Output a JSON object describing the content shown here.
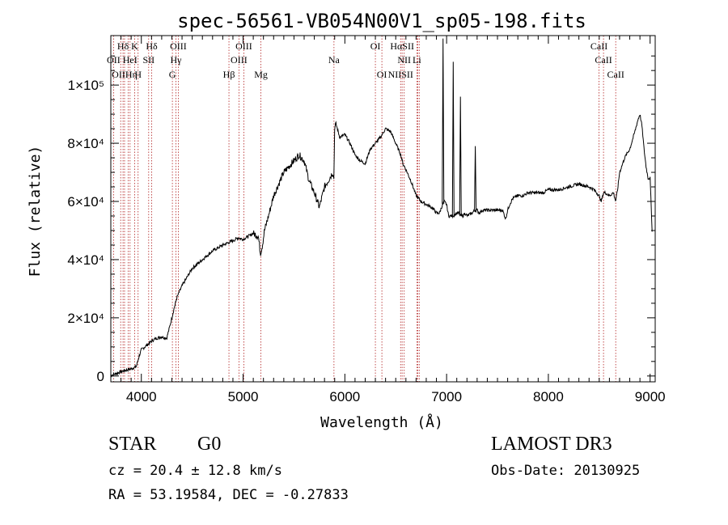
{
  "chart_data": {
    "type": "line",
    "title": "spec-56561-VB054N00V1_sp05-198.fits",
    "xlabel": "Wavelength (Å)",
    "ylabel": "Flux (relative)",
    "xlim": [
      3700,
      9050
    ],
    "ylim": [
      -2000,
      117000
    ],
    "x_ticks": [
      4000,
      5000,
      6000,
      7000,
      8000,
      9000
    ],
    "y_ticks": [
      {
        "value": 0,
        "label": "0"
      },
      {
        "value": 20000,
        "label": "2×10⁴"
      },
      {
        "value": 40000,
        "label": "4×10⁴"
      },
      {
        "value": 60000,
        "label": "6×10⁴"
      },
      {
        "value": 80000,
        "label": "8×10⁴"
      },
      {
        "value": 100000,
        "label": "1×10⁵"
      }
    ],
    "line_color": "#000000",
    "marker_color": "#b22222",
    "line_markers": [
      {
        "label": "Hδ",
        "x": 3820,
        "row": 0
      },
      {
        "label": "K",
        "x": 3934,
        "row": 0
      },
      {
        "label": "Hδ",
        "x": 4102,
        "row": 0
      },
      {
        "label": "OIII",
        "x": 4363,
        "row": 0
      },
      {
        "label": "OIII",
        "x": 5007,
        "row": 0
      },
      {
        "label": "OI",
        "x": 6300,
        "row": 0
      },
      {
        "label": "HαSII",
        "x": 6563,
        "row": 0
      },
      {
        "label": "CaII",
        "x": 8498,
        "row": 0
      },
      {
        "label": "OII",
        "x": 3727,
        "row": 1
      },
      {
        "label": "HeI",
        "x": 3889,
        "row": 1
      },
      {
        "label": "SII",
        "x": 4072,
        "row": 1
      },
      {
        "label": "Hγ",
        "x": 4340,
        "row": 1
      },
      {
        "label": "OIII",
        "x": 4959,
        "row": 1
      },
      {
        "label": "Na",
        "x": 5893,
        "row": 1
      },
      {
        "label": "NII",
        "x": 6583,
        "row": 1
      },
      {
        "label": "Li",
        "x": 6708,
        "row": 1
      },
      {
        "label": "CaII",
        "x": 8542,
        "row": 1
      },
      {
        "label": "OIIHη",
        "x": 3835,
        "row": 2
      },
      {
        "label": "H",
        "x": 3968,
        "row": 2
      },
      {
        "label": "G",
        "x": 4305,
        "row": 2
      },
      {
        "label": "Hβ",
        "x": 4861,
        "row": 2
      },
      {
        "label": "Mg",
        "x": 5175,
        "row": 2
      },
      {
        "label": "OI",
        "x": 6364,
        "row": 2
      },
      {
        "label": "NIISII",
        "x": 6548,
        "row": 2
      },
      {
        "label": "CaII",
        "x": 8662,
        "row": 2
      }
    ],
    "extra_marker_lines": [
      3797,
      3870,
      6717,
      6731
    ],
    "spectrum": {
      "x": [
        3700,
        3750,
        3800,
        3850,
        3900,
        3950,
        3960,
        3980,
        4000,
        4050,
        4100,
        4150,
        4200,
        4250,
        4300,
        4320,
        4350,
        4400,
        4450,
        4500,
        4600,
        4700,
        4800,
        4900,
        4950,
        5000,
        5050,
        5100,
        5150,
        5170,
        5190,
        5210,
        5250,
        5300,
        5350,
        5400,
        5450,
        5500,
        5550,
        5600,
        5650,
        5700,
        5750,
        5800,
        5850,
        5880,
        5893,
        5900,
        5910,
        5950,
        6000,
        6050,
        6100,
        6150,
        6200,
        6250,
        6300,
        6350,
        6400,
        6450,
        6500,
        6550,
        6570,
        6600,
        6650,
        6700,
        6750,
        6800,
        6850,
        6880,
        6900,
        6930,
        6950,
        6975,
        7000,
        7010,
        7020,
        7040,
        7060,
        7100,
        7120,
        7140,
        7160,
        7180,
        7200,
        7250,
        7280,
        7300,
        7320,
        7350,
        7400,
        7450,
        7500,
        7550,
        7580,
        7600,
        7620,
        7650,
        7700,
        7750,
        7800,
        7850,
        7900,
        7950,
        8000,
        8100,
        8200,
        8300,
        8400,
        8450,
        8498,
        8520,
        8542,
        8560,
        8600,
        8640,
        8662,
        8680,
        8700,
        8750,
        8800,
        8850,
        8880,
        8900,
        8920,
        8940,
        8960,
        8980,
        9000,
        9020
      ],
      "y": [
        200,
        800,
        1500,
        2000,
        2500,
        3200,
        4500,
        7000,
        9000,
        10500,
        12000,
        13000,
        13500,
        13000,
        20000,
        23000,
        27000,
        31000,
        34000,
        37000,
        40000,
        43000,
        45000,
        46500,
        47500,
        47000,
        48000,
        49000,
        48000,
        42000,
        45000,
        50000,
        55000,
        62000,
        66000,
        70000,
        72000,
        74000,
        76000,
        74000,
        67000,
        63000,
        58000,
        65000,
        68000,
        70000,
        68000,
        85000,
        87000,
        82000,
        83000,
        80000,
        76000,
        74000,
        73000,
        78000,
        80000,
        82000,
        85000,
        84000,
        80000,
        76000,
        73000,
        71000,
        67000,
        62000,
        60000,
        59000,
        58000,
        57000,
        56000,
        56000,
        58000,
        60000,
        59000,
        57000,
        55000,
        55000,
        55000,
        56000,
        56000,
        55000,
        55000,
        56000,
        55000,
        56000,
        57000,
        57000,
        56000,
        57000,
        57000,
        57000,
        57000,
        57000,
        54000,
        57000,
        59000,
        61000,
        62000,
        62000,
        63000,
        63000,
        63000,
        63000,
        64000,
        64000,
        65000,
        66000,
        65000,
        64000,
        62000,
        60000,
        63000,
        63000,
        62000,
        63000,
        60000,
        64000,
        70000,
        75000,
        78000,
        84000,
        88000,
        90000,
        86000,
        78000,
        72000,
        68000,
        68000,
        50000
      ],
      "spikes": [
        {
          "x": 6965,
          "y": 116000
        },
        {
          "x": 7065,
          "y": 108000
        },
        {
          "x": 7136,
          "y": 96000
        },
        {
          "x": 7282,
          "y": 79000
        }
      ]
    }
  },
  "info": {
    "object_class": "STAR",
    "subclass": "G0",
    "survey": "LAMOST DR3",
    "redshift_line": "cz = 20.4 ± 12.8 km/s",
    "obs_date": "Obs-Date: 20130925",
    "position": "RA =  53.19584, DEC =  -0.27833"
  }
}
